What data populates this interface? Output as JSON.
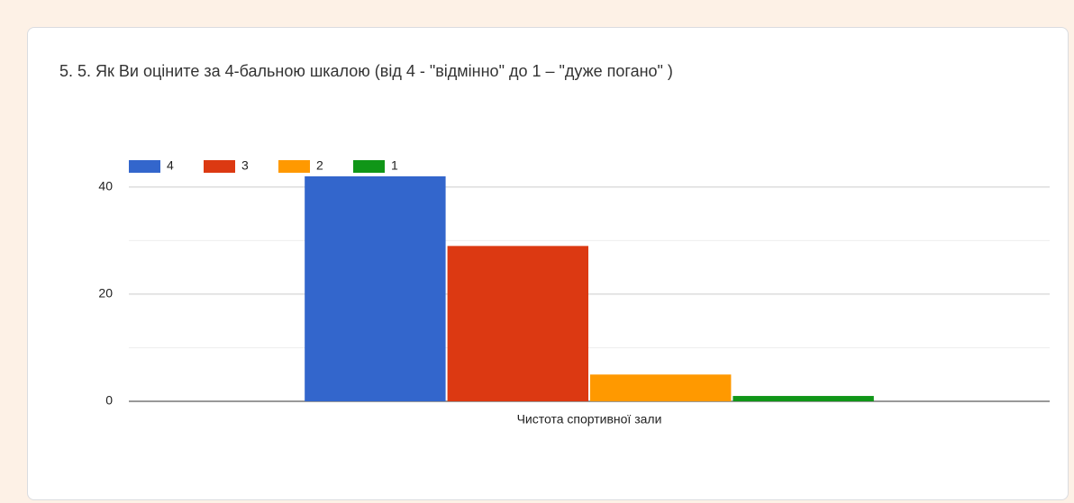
{
  "chart_data": {
    "type": "bar",
    "title": "5. 5. Як Ви оціните за 4-бальною шкалою (від 4 - \"відмінно\" до 1 – \"дуже погано\" )",
    "categories": [
      "Чистота спортивної зали"
    ],
    "series": [
      {
        "name": "4",
        "color": "#3366cc",
        "values": [
          42
        ]
      },
      {
        "name": "3",
        "color": "#dc3912",
        "values": [
          29
        ]
      },
      {
        "name": "2",
        "color": "#ff9900",
        "values": [
          5
        ]
      },
      {
        "name": "1",
        "color": "#109618",
        "values": [
          1
        ]
      }
    ],
    "ylim": [
      0,
      43
    ],
    "yticks": [
      0,
      20,
      40
    ],
    "yminor": [
      10,
      30
    ],
    "grid": true,
    "legend": "top"
  }
}
